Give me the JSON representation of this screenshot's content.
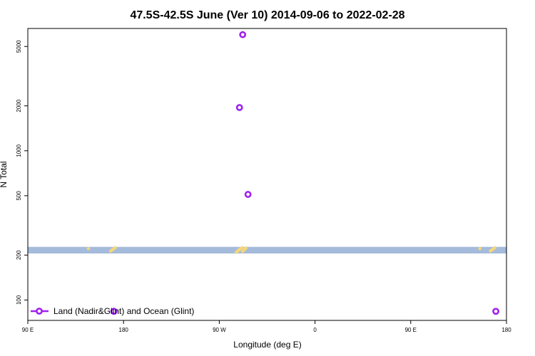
{
  "chart_data": {
    "type": "scatter",
    "title": "47.5S-42.5S June (Ver 10)   2014-09-06 to 2022-02-28",
    "xlabel": "Longitude (deg E)",
    "ylabel": "N Total",
    "x_ticks": [
      {
        "value": 90,
        "label": "90 E"
      },
      {
        "value": 180,
        "label": "180"
      },
      {
        "value": 270,
        "label": "90 W"
      },
      {
        "value": 360,
        "label": "0"
      },
      {
        "value": 450,
        "label": "90 E"
      },
      {
        "value": 540,
        "label": "180"
      }
    ],
    "xlim": [
      90,
      540
    ],
    "y_scale": "log",
    "y_ticks": [
      100,
      200,
      500,
      1000,
      2000,
      5000
    ],
    "ylim": [
      73,
      6600
    ],
    "series": [
      {
        "name": "Land (Nadir&Glint) and Ocean (Glint)",
        "color": "#a020f0",
        "marker": "open-circle",
        "points": [
          {
            "x": 292,
            "y": 6000
          },
          {
            "x": 289,
            "y": 1950
          },
          {
            "x": 297,
            "y": 510
          },
          {
            "x": 171,
            "y": 84
          },
          {
            "x": 530,
            "y": 84
          }
        ]
      }
    ],
    "shaded_band": {
      "y_range": [
        205,
        227
      ],
      "color": "#a5bbdb"
    },
    "highlight_segments": {
      "color": "#f5d77b",
      "points": [
        {
          "x": 147,
          "y": 221
        },
        {
          "x": 168,
          "y": 213
        },
        {
          "x": 169,
          "y": 216
        },
        {
          "x": 170,
          "y": 218
        },
        {
          "x": 171,
          "y": 221
        },
        {
          "x": 172,
          "y": 224
        },
        {
          "x": 286,
          "y": 209
        },
        {
          "x": 287,
          "y": 212
        },
        {
          "x": 288,
          "y": 215
        },
        {
          "x": 289,
          "y": 218
        },
        {
          "x": 290,
          "y": 221
        },
        {
          "x": 291,
          "y": 224
        },
        {
          "x": 292,
          "y": 212
        },
        {
          "x": 293,
          "y": 216
        },
        {
          "x": 294,
          "y": 219
        },
        {
          "x": 295,
          "y": 223
        },
        {
          "x": 515,
          "y": 221
        },
        {
          "x": 525,
          "y": 213
        },
        {
          "x": 526,
          "y": 216
        },
        {
          "x": 527,
          "y": 218
        },
        {
          "x": 528,
          "y": 221
        },
        {
          "x": 529,
          "y": 224
        }
      ]
    },
    "legend_position": "bottom-left",
    "grid": false
  }
}
